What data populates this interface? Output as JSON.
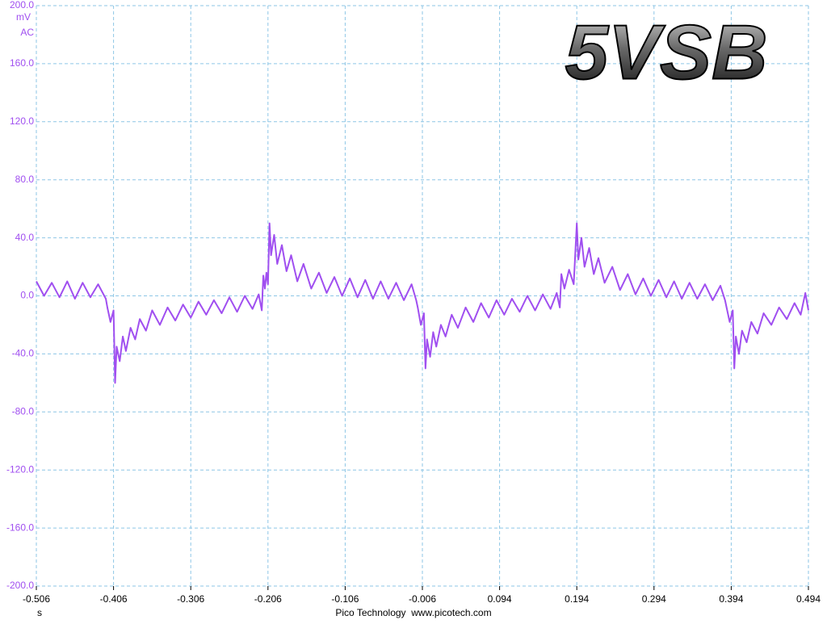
{
  "chart_data": {
    "type": "line",
    "title": "5VSB",
    "ylabel": "mV",
    "coupling": "AC",
    "xlabel": "s",
    "footer": "Pico Technology  www.picotech.com",
    "xlim": [
      -0.506,
      0.494
    ],
    "xticks": [
      -0.506,
      -0.406,
      -0.306,
      -0.206,
      -0.106,
      -0.006,
      0.094,
      0.194,
      0.294,
      0.394,
      0.494
    ],
    "ylim": [
      -200,
      200
    ],
    "yticks": [
      {
        "value": -200,
        "label": "-200.0"
      },
      {
        "value": -160,
        "label": "-160.0"
      },
      {
        "value": -120,
        "label": "-120.0"
      },
      {
        "value": -80,
        "label": "-80.0"
      },
      {
        "value": -40,
        "label": "-40.0"
      },
      {
        "value": 0,
        "label": "0.0"
      },
      {
        "value": 40,
        "label": "40.0"
      },
      {
        "value": 80,
        "label": "80.0"
      },
      {
        "value": 120,
        "label": "120.0"
      },
      {
        "value": 160,
        "label": "160.0"
      },
      {
        "value": 200,
        "label": "200.0"
      }
    ],
    "grid": true,
    "x": [
      -0.506,
      -0.496,
      -0.486,
      -0.476,
      -0.466,
      -0.456,
      -0.446,
      -0.436,
      -0.426,
      -0.416,
      -0.414,
      -0.41,
      -0.406,
      -0.404,
      -0.402,
      -0.398,
      -0.394,
      -0.39,
      -0.384,
      -0.378,
      -0.372,
      -0.364,
      -0.356,
      -0.346,
      -0.336,
      -0.326,
      -0.316,
      -0.306,
      -0.296,
      -0.286,
      -0.276,
      -0.266,
      -0.256,
      -0.246,
      -0.236,
      -0.226,
      -0.218,
      -0.214,
      -0.212,
      -0.21,
      -0.208,
      -0.206,
      -0.204,
      -0.202,
      -0.198,
      -0.194,
      -0.188,
      -0.182,
      -0.176,
      -0.168,
      -0.16,
      -0.15,
      -0.14,
      -0.13,
      -0.12,
      -0.11,
      -0.1,
      -0.09,
      -0.08,
      -0.07,
      -0.06,
      -0.05,
      -0.04,
      -0.03,
      -0.02,
      -0.014,
      -0.012,
      -0.008,
      -0.004,
      -0.002,
      0.0,
      0.004,
      0.008,
      0.012,
      0.018,
      0.024,
      0.032,
      0.04,
      0.05,
      0.06,
      0.07,
      0.08,
      0.09,
      0.1,
      0.11,
      0.12,
      0.13,
      0.14,
      0.15,
      0.16,
      0.168,
      0.172,
      0.174,
      0.178,
      0.184,
      0.19,
      0.194,
      0.196,
      0.2,
      0.204,
      0.21,
      0.216,
      0.222,
      0.23,
      0.24,
      0.25,
      0.26,
      0.27,
      0.28,
      0.29,
      0.3,
      0.31,
      0.32,
      0.33,
      0.34,
      0.35,
      0.36,
      0.37,
      0.38,
      0.386,
      0.388,
      0.392,
      0.396,
      0.398,
      0.4,
      0.404,
      0.408,
      0.414,
      0.42,
      0.428,
      0.436,
      0.446,
      0.456,
      0.466,
      0.476,
      0.484,
      0.49,
      0.494
    ],
    "series": [
      {
        "color": "#a04ff0",
        "values": [
          10,
          0,
          9,
          -1,
          10,
          -2,
          9,
          -1,
          8,
          -2,
          -8,
          -18,
          -10,
          -60,
          -35,
          -45,
          -28,
          -38,
          -22,
          -30,
          -16,
          -24,
          -10,
          -20,
          -8,
          -17,
          -6,
          -15,
          -4,
          -13,
          -3,
          -12,
          -1,
          -11,
          0,
          -9,
          1,
          -10,
          14,
          5,
          16,
          8,
          50,
          28,
          42,
          22,
          35,
          17,
          28,
          10,
          22,
          5,
          16,
          2,
          13,
          0,
          12,
          -1,
          11,
          -2,
          10,
          -2,
          9,
          -3,
          8,
          -3,
          -8,
          -20,
          -12,
          -50,
          -30,
          -42,
          -25,
          -35,
          -20,
          -28,
          -13,
          -22,
          -8,
          -18,
          -5,
          -15,
          -3,
          -13,
          -2,
          -11,
          0,
          -10,
          1,
          -9,
          2,
          -8,
          15,
          5,
          18,
          8,
          50,
          25,
          40,
          20,
          33,
          15,
          26,
          9,
          20,
          4,
          15,
          1,
          12,
          0,
          11,
          -1,
          10,
          -2,
          9,
          -2,
          8,
          -3,
          7,
          -3,
          -8,
          -18,
          -10,
          -50,
          -28,
          -40,
          -24,
          -32,
          -18,
          -26,
          -12,
          -20,
          -8,
          -16,
          -5,
          -13,
          2,
          -10
        ]
      }
    ]
  }
}
